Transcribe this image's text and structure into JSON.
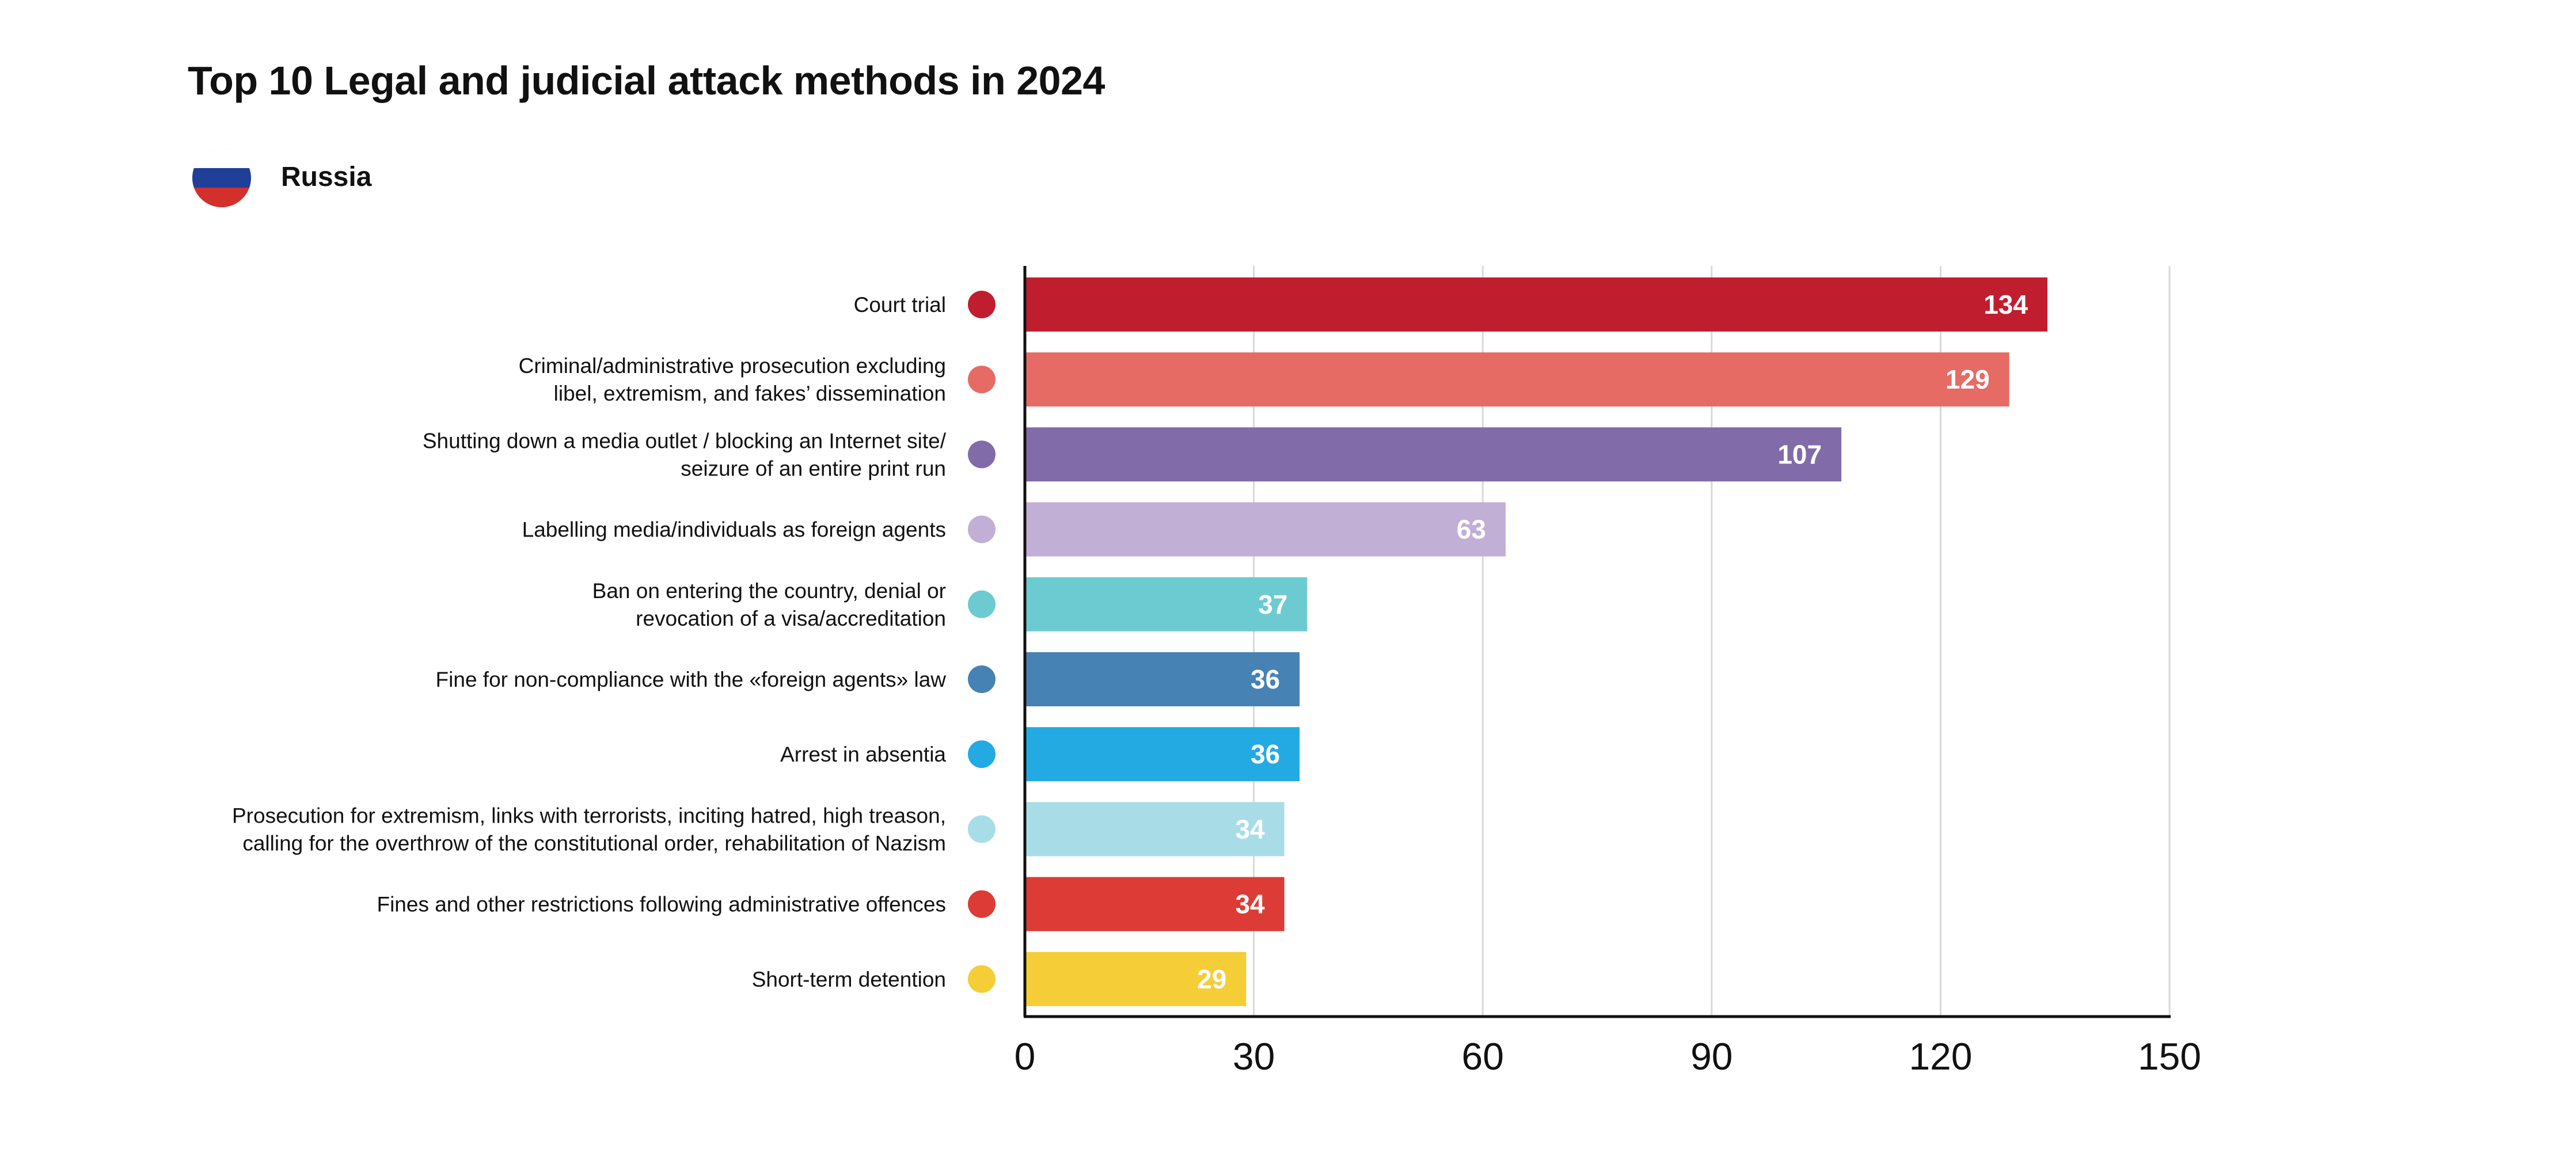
{
  "title": "Top 10 Legal and judicial attack methods in 2024",
  "legend": {
    "country": "Russia",
    "flag_colors": [
      "#ffffff",
      "#1f3f98",
      "#d3302c"
    ]
  },
  "chart_data": {
    "type": "bar",
    "orientation": "horizontal",
    "title": "Top 10 Legal and judicial attack methods in 2024",
    "xlabel": "",
    "ylabel": "",
    "xlim": [
      0,
      150
    ],
    "x_ticks": [
      0,
      30,
      60,
      90,
      120,
      150
    ],
    "grid": true,
    "series_name": "Russia",
    "categories": [
      [
        "Court trial"
      ],
      [
        "Criminal/administrative prosecution excluding",
        "libel, extremism, and fakes’ dissemination"
      ],
      [
        "Shutting down a media outlet / blocking an Internet site/",
        "seizure of an entire print run"
      ],
      [
        "Labelling media/individuals as foreign agents"
      ],
      [
        "Ban on entering the country, denial or",
        "revocation of a visa/accreditation"
      ],
      [
        "Fine for non-compliance with the «foreign agents» law"
      ],
      [
        "Arrest in absentia"
      ],
      [
        "Prosecution for extremism, links with terrorists, inciting hatred, high treason,",
        "calling for the overthrow of the constitutional order, rehabilitation of Nazism"
      ],
      [
        "Fines and other restrictions following administrative offences"
      ],
      [
        "Short-term detention"
      ]
    ],
    "values": [
      134,
      129,
      107,
      63,
      37,
      36,
      36,
      34,
      34,
      29
    ],
    "colors": [
      "#c01e2f",
      "#e66b65",
      "#816ca9",
      "#c2afd5",
      "#6ccbd0",
      "#4682b4",
      "#23aae2",
      "#a8dde8",
      "#dd3b35",
      "#f5cd37"
    ]
  }
}
